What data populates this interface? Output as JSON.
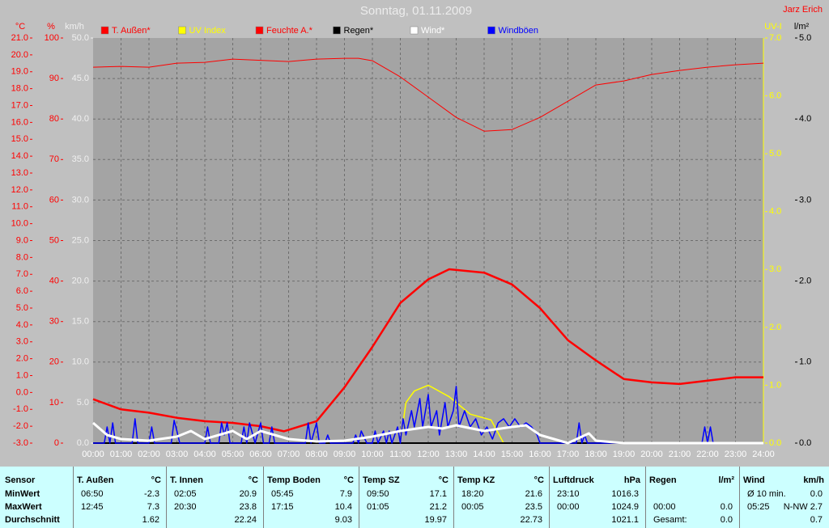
{
  "chart_data": {
    "type": "line",
    "title": "Sonntag, 01.11.2009",
    "author": "Jarz Erich",
    "xlim": [
      0,
      24
    ],
    "xticks": [
      {
        "value": 0,
        "label": "00:00"
      },
      {
        "value": 1,
        "label": "01:00"
      },
      {
        "value": 2,
        "label": "02:00"
      },
      {
        "value": 3,
        "label": "03:00"
      },
      {
        "value": 4,
        "label": "04:00"
      },
      {
        "value": 5,
        "label": "05:00"
      },
      {
        "value": 6,
        "label": "06:00"
      },
      {
        "value": 7,
        "label": "07:00"
      },
      {
        "value": 8,
        "label": "08:00"
      },
      {
        "value": 9,
        "label": "09:00"
      },
      {
        "value": 10,
        "label": "10:00"
      },
      {
        "value": 11,
        "label": "11:00"
      },
      {
        "value": 12,
        "label": "12:00"
      },
      {
        "value": 13,
        "label": "13:00"
      },
      {
        "value": 14,
        "label": "14:00"
      },
      {
        "value": 15,
        "label": "15:00"
      },
      {
        "value": 16,
        "label": "16:00"
      },
      {
        "value": 17,
        "label": "17:00"
      },
      {
        "value": 18,
        "label": "18:00"
      },
      {
        "value": 19,
        "label": "19:00"
      },
      {
        "value": 20,
        "label": "20:00"
      },
      {
        "value": 21,
        "label": "21:00"
      },
      {
        "value": 22,
        "label": "22:00"
      },
      {
        "value": 23,
        "label": "23:00"
      },
      {
        "value": 24,
        "label": "24:00"
      }
    ],
    "grid": true,
    "axes": [
      {
        "label": "°C",
        "color": "#ff0000",
        "lim": [
          -3,
          21
        ],
        "ticks": [
          {
            "value": -3,
            "label": "-3.0"
          },
          {
            "value": -2,
            "label": "-2.0"
          },
          {
            "value": -1,
            "label": "-1.0"
          },
          {
            "value": 0,
            "label": "0.0"
          },
          {
            "value": 1,
            "label": "1.0"
          },
          {
            "value": 2,
            "label": "2.0"
          },
          {
            "value": 3,
            "label": "3.0"
          },
          {
            "value": 4,
            "label": "4.0"
          },
          {
            "value": 5,
            "label": "5.0"
          },
          {
            "value": 6,
            "label": "6.0"
          },
          {
            "value": 7,
            "label": "7.0"
          },
          {
            "value": 8,
            "label": "8.0"
          },
          {
            "value": 9,
            "label": "9.0"
          },
          {
            "value": 10,
            "label": "10.0"
          },
          {
            "value": 11,
            "label": "11.0"
          },
          {
            "value": 12,
            "label": "12.0"
          },
          {
            "value": 13,
            "label": "13.0"
          },
          {
            "value": 14,
            "label": "14.0"
          },
          {
            "value": 15,
            "label": "15.0"
          },
          {
            "value": 16,
            "label": "16.0"
          },
          {
            "value": 17,
            "label": "17.0"
          },
          {
            "value": 18,
            "label": "18.0"
          },
          {
            "value": 19,
            "label": "19.0"
          },
          {
            "value": 20,
            "label": "20.0"
          },
          {
            "value": 21,
            "label": "21.0"
          }
        ]
      },
      {
        "label": "%",
        "color": "#ff0000",
        "lim": [
          0,
          100
        ],
        "ticks": [
          0,
          10,
          20,
          30,
          40,
          50,
          60,
          70,
          80,
          90,
          100
        ]
      },
      {
        "label": "km/h",
        "color": "#f0f0f0",
        "lim": [
          0,
          50
        ],
        "ticks": [
          {
            "value": 0,
            "label": "0.0"
          },
          {
            "value": 5,
            "label": "5.0"
          },
          {
            "value": 10,
            "label": "10.0"
          },
          {
            "value": 15,
            "label": "15.0"
          },
          {
            "value": 20,
            "label": "20.0"
          },
          {
            "value": 25,
            "label": "25.0"
          },
          {
            "value": 30,
            "label": "30.0"
          },
          {
            "value": 35,
            "label": "35.0"
          },
          {
            "value": 40,
            "label": "40.0"
          },
          {
            "value": 45,
            "label": "45.0"
          },
          {
            "value": 50,
            "label": "50.0"
          }
        ]
      },
      {
        "label": "UV-I",
        "color": "#ffff00",
        "lim": [
          0,
          7
        ],
        "ticks": [
          {
            "value": 0,
            "label": "0.0"
          },
          {
            "value": 1,
            "label": "1.0"
          },
          {
            "value": 2,
            "label": "2.0"
          },
          {
            "value": 3,
            "label": "3.0"
          },
          {
            "value": 4,
            "label": "4.0"
          },
          {
            "value": 5,
            "label": "5.0"
          },
          {
            "value": 6,
            "label": "6.0"
          },
          {
            "value": 7,
            "label": "7.0"
          }
        ]
      },
      {
        "label": "l/m²",
        "color": "#000000",
        "lim": [
          0,
          5
        ],
        "ticks": [
          {
            "value": 0,
            "label": "0.0"
          },
          {
            "value": 1,
            "label": "1.0"
          },
          {
            "value": 2,
            "label": "2.0"
          },
          {
            "value": 3,
            "label": "3.0"
          },
          {
            "value": 4,
            "label": "4.0"
          },
          {
            "value": 5,
            "label": "5.0"
          }
        ]
      }
    ],
    "series": [
      {
        "name": "T. Außen*",
        "color": "#ff0000",
        "axis": 0,
        "x": [
          0,
          1,
          2,
          3,
          4,
          5,
          6,
          6.83,
          8,
          9,
          10,
          11,
          12,
          12.75,
          14,
          15,
          16,
          17,
          18,
          19,
          20,
          21,
          22,
          23,
          24
        ],
        "values": [
          -0.4,
          -1.0,
          -1.2,
          -1.5,
          -1.7,
          -1.8,
          -2.0,
          -2.3,
          -1.7,
          0.3,
          2.7,
          5.3,
          6.7,
          7.3,
          7.1,
          6.4,
          5.0,
          3.1,
          1.9,
          0.8,
          0.6,
          0.5,
          0.7,
          0.9,
          0.9
        ]
      },
      {
        "name": "UV Index",
        "color": "#ffff00",
        "axis": 3,
        "x": [
          0,
          11,
          11.2,
          11.5,
          12,
          12.75,
          13.5,
          14.25,
          14.7,
          24
        ],
        "values": [
          0,
          0,
          0.7,
          0.9,
          1.0,
          0.8,
          0.5,
          0.4,
          0,
          0
        ]
      },
      {
        "name": "Feuchte A.*",
        "color": "#ff0000",
        "axis": 1,
        "x": [
          0,
          1,
          2,
          3,
          4,
          5,
          6,
          7,
          8,
          9,
          9.5,
          10,
          11,
          12,
          13,
          14,
          15,
          16,
          17,
          18,
          19,
          20,
          21,
          22,
          23,
          24
        ],
        "values": [
          92.8,
          93,
          92.8,
          93.8,
          94,
          94.8,
          94.5,
          94.2,
          94.8,
          95,
          95,
          94.4,
          90.4,
          85.4,
          80.4,
          77,
          77.4,
          80.4,
          84.4,
          88.4,
          89.4,
          91,
          92,
          92.8,
          93.4,
          93.8
        ]
      },
      {
        "name": "Regen*",
        "color": "#000000",
        "axis": 4,
        "x": [
          0,
          24
        ],
        "values": [
          0,
          0
        ]
      },
      {
        "name": "Wind*",
        "color": "#ffffff",
        "axis": 2,
        "x": [
          0,
          0.5,
          1,
          2,
          3,
          3.5,
          4,
          5,
          5.5,
          6,
          7,
          8,
          9,
          10,
          11,
          12,
          12.5,
          13,
          14,
          15,
          15.5,
          16,
          17,
          17.75,
          18,
          19,
          24
        ],
        "values": [
          2.5,
          1,
          0.5,
          0.3,
          0.8,
          1.5,
          0.5,
          1.5,
          0.5,
          1.5,
          0.5,
          0.2,
          0.3,
          0.8,
          1.5,
          2,
          1.8,
          2.2,
          1.5,
          2,
          2.2,
          1,
          0,
          1.2,
          0.3,
          0,
          0
        ]
      },
      {
        "name": "Windböen",
        "color": "#0000ff",
        "axis": 2,
        "x": [
          0,
          0.4,
          0.5,
          0.6,
          0.7,
          0.8,
          1.4,
          1.5,
          1.6,
          2,
          2.1,
          2.2,
          2.8,
          2.9,
          3,
          3.1,
          4,
          4.1,
          4.2,
          4.5,
          4.6,
          4.7,
          4.8,
          4.9,
          5.3,
          5.4,
          5.5,
          5.6,
          5.8,
          6,
          6.1,
          6.3,
          6.4,
          6.5,
          7.6,
          7.7,
          7.8,
          8,
          8.1,
          8.3,
          8.4,
          8.5,
          9.3,
          9.4,
          9.5,
          9.6,
          9.8,
          10,
          10.1,
          10.2,
          10.4,
          10.5,
          10.6,
          10.7,
          10.9,
          11,
          11.1,
          11.2,
          11.4,
          11.5,
          11.7,
          11.8,
          12,
          12.1,
          12.3,
          12.4,
          12.6,
          12.7,
          12.9,
          13,
          13.1,
          13.3,
          13.5,
          13.7,
          13.9,
          14.1,
          14.3,
          14.5,
          14.7,
          14.9,
          15.1,
          15.3,
          15.5,
          15.7,
          15.9,
          16,
          17.3,
          17.4,
          17.5,
          17.6,
          17.7,
          21.8,
          21.9,
          22,
          22.1,
          22.2,
          24
        ],
        "values": [
          0,
          0,
          2,
          0,
          2.5,
          0,
          0,
          3,
          0,
          0,
          2,
          0,
          0,
          2.8,
          1.5,
          0,
          0,
          2,
          0,
          0,
          2.5,
          1,
          2.5,
          0,
          0,
          2,
          0,
          2.5,
          0,
          2.5,
          0,
          0,
          2,
          0,
          0,
          2.5,
          0,
          2.5,
          0,
          0,
          1,
          0,
          0,
          1,
          0,
          1.5,
          0,
          0,
          1.5,
          0,
          1.5,
          0,
          1.5,
          0,
          2,
          0,
          3,
          1,
          4,
          2,
          5.5,
          2,
          6,
          2,
          4,
          1,
          5,
          2,
          4,
          7,
          2,
          4,
          2,
          3,
          1,
          2,
          0.5,
          2.5,
          3,
          2,
          3,
          2,
          2.5,
          2,
          1,
          0,
          0,
          2.5,
          0,
          1,
          0,
          0,
          2,
          0,
          2,
          0,
          0
        ]
      }
    ]
  },
  "table": {
    "header": "Sensor",
    "row_labels": [
      "MinWert",
      "MaxWert",
      "Durchschnitt"
    ],
    "groups": [
      {
        "title": "T. Außen",
        "unit": "°C",
        "rows": [
          [
            "06:50",
            "-2.3"
          ],
          [
            "12:45",
            "7.3"
          ],
          [
            null,
            "1.62"
          ]
        ]
      },
      {
        "title": "T. Innen",
        "unit": "°C",
        "rows": [
          [
            "02:05",
            "20.9"
          ],
          [
            "20:30",
            "23.8"
          ],
          [
            null,
            "22.24"
          ]
        ]
      },
      {
        "title": "Temp Boden",
        "unit": "°C",
        "rows": [
          [
            "05:45",
            "7.9"
          ],
          [
            "17:15",
            "10.4"
          ],
          [
            null,
            "9.03"
          ]
        ]
      },
      {
        "title": "Temp SZ",
        "unit": "°C",
        "rows": [
          [
            "09:50",
            "17.1"
          ],
          [
            "01:05",
            "21.2"
          ],
          [
            null,
            "19.97"
          ]
        ]
      },
      {
        "title": "Temp KZ",
        "unit": "°C",
        "rows": [
          [
            "18:20",
            "21.6"
          ],
          [
            "00:05",
            "23.5"
          ],
          [
            null,
            "22.73"
          ]
        ]
      },
      {
        "title": "Luftdruck",
        "unit": "hPa",
        "rows": [
          [
            "23:10",
            "1016.3"
          ],
          [
            "00:00",
            "1024.9"
          ],
          [
            null,
            "1021.1"
          ]
        ]
      },
      {
        "title": "Regen",
        "unit": "l/m²",
        "rows": [
          [
            null,
            null
          ],
          [
            "00:00",
            "0.0"
          ],
          [
            "Gesamt:",
            "0.0"
          ]
        ]
      },
      {
        "title": "Wind",
        "unit": "km/h",
        "rows": [
          [
            "Ø 10 min.",
            "0.0"
          ],
          [
            "05:25",
            "N-NW 2.7"
          ],
          [
            null,
            "0.7"
          ]
        ]
      }
    ]
  }
}
